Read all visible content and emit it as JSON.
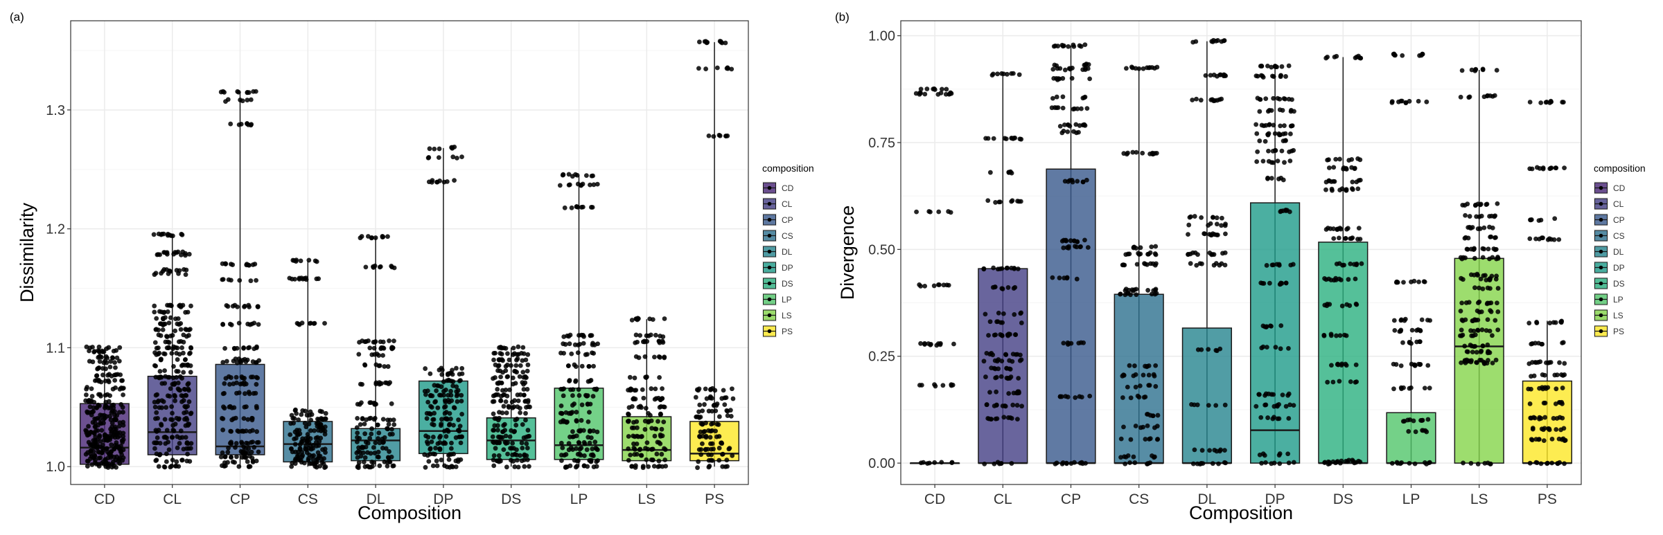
{
  "panels": [
    {
      "tag": "(a)",
      "legend_title": "composition",
      "chart_data": {
        "type": "box",
        "title": "",
        "xlabel": "Composition",
        "ylabel": "Dissimilarity",
        "categories": [
          "CD",
          "CL",
          "CP",
          "CS",
          "DL",
          "DP",
          "DS",
          "LP",
          "LS",
          "PS"
        ],
        "ylim": [
          0.985,
          1.375
        ],
        "yticks": [
          1.0,
          1.1,
          1.2,
          1.3
        ],
        "ytick_labels": [
          "1.0",
          "1.1",
          "1.2",
          "1.3"
        ],
        "grid": true,
        "legend_position": "right",
        "boxes": [
          {
            "category": "CD",
            "q1": 1.002,
            "median": 1.016,
            "q3": 1.053,
            "whisker_low": 1.0,
            "whisker_high": 1.1
          },
          {
            "category": "CL",
            "q1": 1.01,
            "median": 1.029,
            "q3": 1.076,
            "whisker_low": 1.0,
            "whisker_high": 1.195
          },
          {
            "category": "CP",
            "q1": 1.01,
            "median": 1.017,
            "q3": 1.086,
            "whisker_low": 1.0,
            "whisker_high": 1.315
          },
          {
            "category": "CS",
            "q1": 1.004,
            "median": 1.019,
            "q3": 1.038,
            "whisker_low": 1.0,
            "whisker_high": 1.173
          },
          {
            "category": "DL",
            "q1": 1.005,
            "median": 1.022,
            "q3": 1.032,
            "whisker_low": 1.0,
            "whisker_high": 1.193
          },
          {
            "category": "DP",
            "q1": 1.011,
            "median": 1.03,
            "q3": 1.072,
            "whisker_low": 1.0,
            "whisker_high": 1.268
          },
          {
            "category": "DS",
            "q1": 1.006,
            "median": 1.022,
            "q3": 1.041,
            "whisker_low": 1.0,
            "whisker_high": 1.1
          },
          {
            "category": "LP",
            "q1": 1.006,
            "median": 1.018,
            "q3": 1.066,
            "whisker_low": 1.0,
            "whisker_high": 1.245
          },
          {
            "category": "LS",
            "q1": 1.005,
            "median": 1.014,
            "q3": 1.042,
            "whisker_low": 1.0,
            "whisker_high": 1.124
          },
          {
            "category": "PS",
            "q1": 1.005,
            "median": 1.011,
            "q3": 1.038,
            "whisker_low": 1.0,
            "whisker_high": 1.357
          }
        ],
        "point_levels": [
          [
            1.1,
            1.097,
            1.092,
            1.088,
            1.083,
            1.077,
            1.072,
            1.066,
            1.06,
            1.055,
            1.052,
            1.05,
            1.046,
            1.043,
            1.04,
            1.037,
            1.034,
            1.031,
            1.029,
            1.027,
            1.025,
            1.022,
            1.02,
            1.018,
            1.016,
            1.014,
            1.012,
            1.01,
            1.008,
            1.006,
            1.004,
            1.002,
            1.0
          ],
          [
            1.195,
            1.18,
            1.178,
            1.165,
            1.162,
            1.135,
            1.13,
            1.125,
            1.12,
            1.115,
            1.11,
            1.105,
            1.1,
            1.095,
            1.09,
            1.085,
            1.08,
            1.075,
            1.07,
            1.065,
            1.06,
            1.055,
            1.05,
            1.045,
            1.04,
            1.035,
            1.03,
            1.025,
            1.02,
            1.015,
            1.01,
            1.005,
            1.0
          ],
          [
            1.315,
            1.308,
            1.288,
            1.17,
            1.157,
            1.135,
            1.12,
            1.1,
            1.09,
            1.088,
            1.075,
            1.07,
            1.062,
            1.05,
            1.04,
            1.03,
            1.02,
            1.016,
            1.012,
            1.008,
            1.004,
            1.0
          ],
          [
            1.173,
            1.158,
            1.12,
            1.047,
            1.044,
            1.04,
            1.036,
            1.033,
            1.03,
            1.027,
            1.024,
            1.021,
            1.018,
            1.015,
            1.012,
            1.009,
            1.006,
            1.003,
            1.0
          ],
          [
            1.193,
            1.168,
            1.105,
            1.1,
            1.094,
            1.085,
            1.07,
            1.053,
            1.04,
            1.035,
            1.032,
            1.028,
            1.024,
            1.02,
            1.016,
            1.012,
            1.008,
            1.004,
            1.0
          ],
          [
            1.268,
            1.26,
            1.24,
            1.082,
            1.078,
            1.072,
            1.068,
            1.064,
            1.06,
            1.055,
            1.05,
            1.045,
            1.04,
            1.035,
            1.03,
            1.025,
            1.02,
            1.015,
            1.01,
            1.005,
            1.0
          ],
          [
            1.1,
            1.095,
            1.09,
            1.085,
            1.08,
            1.075,
            1.07,
            1.065,
            1.06,
            1.055,
            1.05,
            1.045,
            1.04,
            1.035,
            1.03,
            1.025,
            1.02,
            1.015,
            1.01,
            1.005,
            1.0
          ],
          [
            1.245,
            1.237,
            1.218,
            1.11,
            1.103,
            1.095,
            1.085,
            1.072,
            1.065,
            1.06,
            1.052,
            1.045,
            1.038,
            1.03,
            1.025,
            1.02,
            1.015,
            1.01,
            1.005,
            1.0
          ],
          [
            1.124,
            1.11,
            1.105,
            1.092,
            1.075,
            1.065,
            1.057,
            1.05,
            1.044,
            1.038,
            1.032,
            1.026,
            1.02,
            1.015,
            1.01,
            1.005,
            1.0
          ],
          [
            1.357,
            1.335,
            1.278,
            1.065,
            1.058,
            1.052,
            1.047,
            1.042,
            1.036,
            1.03,
            1.025,
            1.02,
            1.015,
            1.01,
            1.005,
            1.0
          ]
        ]
      }
    },
    {
      "tag": "(b)",
      "legend_title": "composition",
      "chart_data": {
        "type": "box",
        "title": "",
        "xlabel": "Composition",
        "ylabel": "Divergence",
        "categories": [
          "CD",
          "CL",
          "CP",
          "CS",
          "DL",
          "DP",
          "DS",
          "LP",
          "LS",
          "PS"
        ],
        "ylim": [
          -0.05,
          1.035
        ],
        "yticks": [
          0.0,
          0.25,
          0.5,
          0.75,
          1.0
        ],
        "ytick_labels": [
          "0.00",
          "0.25",
          "0.50",
          "0.75",
          "1.00"
        ],
        "grid": true,
        "legend_position": "right",
        "boxes": [
          {
            "category": "CD",
            "q1": 0.0,
            "median": 0.0,
            "q3": 0.0,
            "whisker_low": 0.0,
            "whisker_high": 0.0
          },
          {
            "category": "CL",
            "q1": 0.0,
            "median": 0.0,
            "q3": 0.455,
            "whisker_low": 0.0,
            "whisker_high": 0.91
          },
          {
            "category": "CP",
            "q1": 0.0,
            "median": 0.0,
            "q3": 0.688,
            "whisker_low": 0.0,
            "whisker_high": 0.977
          },
          {
            "category": "CS",
            "q1": 0.0,
            "median": 0.0,
            "q3": 0.395,
            "whisker_low": 0.0,
            "whisker_high": 0.925
          },
          {
            "category": "DL",
            "q1": 0.0,
            "median": 0.0,
            "q3": 0.316,
            "whisker_low": 0.0,
            "whisker_high": 0.987
          },
          {
            "category": "DP",
            "q1": 0.0,
            "median": 0.077,
            "q3": 0.609,
            "whisker_low": 0.0,
            "whisker_high": 0.928
          },
          {
            "category": "DS",
            "q1": 0.0,
            "median": 0.0,
            "q3": 0.517,
            "whisker_low": 0.0,
            "whisker_high": 0.95
          },
          {
            "category": "LP",
            "q1": 0.0,
            "median": 0.0,
            "q3": 0.118,
            "whisker_low": 0.0,
            "whisker_high": 0.295
          },
          {
            "category": "LS",
            "q1": 0.0,
            "median": 0.273,
            "q3": 0.479,
            "whisker_low": 0.0,
            "whisker_high": 0.92
          },
          {
            "category": "PS",
            "q1": 0.0,
            "median": 0.0,
            "q3": 0.192,
            "whisker_low": 0.0,
            "whisker_high": 0.333
          }
        ],
        "point_levels": [
          [
            0.875,
            0.865,
            0.588,
            0.415,
            0.278,
            0.182,
            0.0
          ],
          [
            0.91,
            0.76,
            0.68,
            0.612,
            0.455,
            0.41,
            0.35,
            0.33,
            0.3,
            0.255,
            0.24,
            0.222,
            0.2,
            0.165,
            0.135,
            0.105,
            0.0
          ],
          [
            0.977,
            0.932,
            0.922,
            0.898,
            0.855,
            0.83,
            0.79,
            0.775,
            0.66,
            0.52,
            0.505,
            0.432,
            0.28,
            0.155,
            0.0
          ],
          [
            0.925,
            0.725,
            0.505,
            0.49,
            0.465,
            0.405,
            0.395,
            0.228,
            0.205,
            0.18,
            0.155,
            0.112,
            0.085,
            0.055,
            0.015,
            0.0
          ],
          [
            0.987,
            0.907,
            0.85,
            0.575,
            0.558,
            0.535,
            0.49,
            0.465,
            0.265,
            0.135,
            0.03,
            0.0
          ],
          [
            0.928,
            0.905,
            0.852,
            0.825,
            0.79,
            0.77,
            0.755,
            0.73,
            0.705,
            0.665,
            0.59,
            0.465,
            0.42,
            0.32,
            0.27,
            0.16,
            0.135,
            0.105,
            0.02,
            0.0
          ],
          [
            0.95,
            0.71,
            0.69,
            0.66,
            0.64,
            0.548,
            0.525,
            0.465,
            0.43,
            0.37,
            0.3,
            0.23,
            0.19,
            0.005,
            0.0
          ],
          [
            0.955,
            0.845,
            0.425,
            0.335,
            0.31,
            0.282,
            0.23,
            0.175,
            0.1,
            0.075,
            0.0
          ],
          [
            0.92,
            0.858,
            0.605,
            0.578,
            0.55,
            0.528,
            0.5,
            0.48,
            0.44,
            0.43,
            0.41,
            0.375,
            0.355,
            0.335,
            0.31,
            0.3,
            0.275,
            0.26,
            0.24,
            0.235,
            0.0
          ],
          [
            0.845,
            0.69,
            0.57,
            0.525,
            0.33,
            0.28,
            0.235,
            0.205,
            0.175,
            0.14,
            0.105,
            0.08,
            0.055,
            0.0
          ]
        ]
      }
    }
  ],
  "colors": {
    "CD": "#482575",
    "CL": "#433E85",
    "CP": "#38598C",
    "CS": "#2D708E",
    "DL": "#25858E",
    "DP": "#1E9B8A",
    "DS": "#2BB07F",
    "LP": "#51C56A",
    "LS": "#85D54A",
    "PS": "#C2DF23",
    "PS_b": "#FDE725",
    "panel_border": "#333333",
    "grid_major": "#EBEBEB",
    "grid_minor": "#F5F5F5"
  }
}
